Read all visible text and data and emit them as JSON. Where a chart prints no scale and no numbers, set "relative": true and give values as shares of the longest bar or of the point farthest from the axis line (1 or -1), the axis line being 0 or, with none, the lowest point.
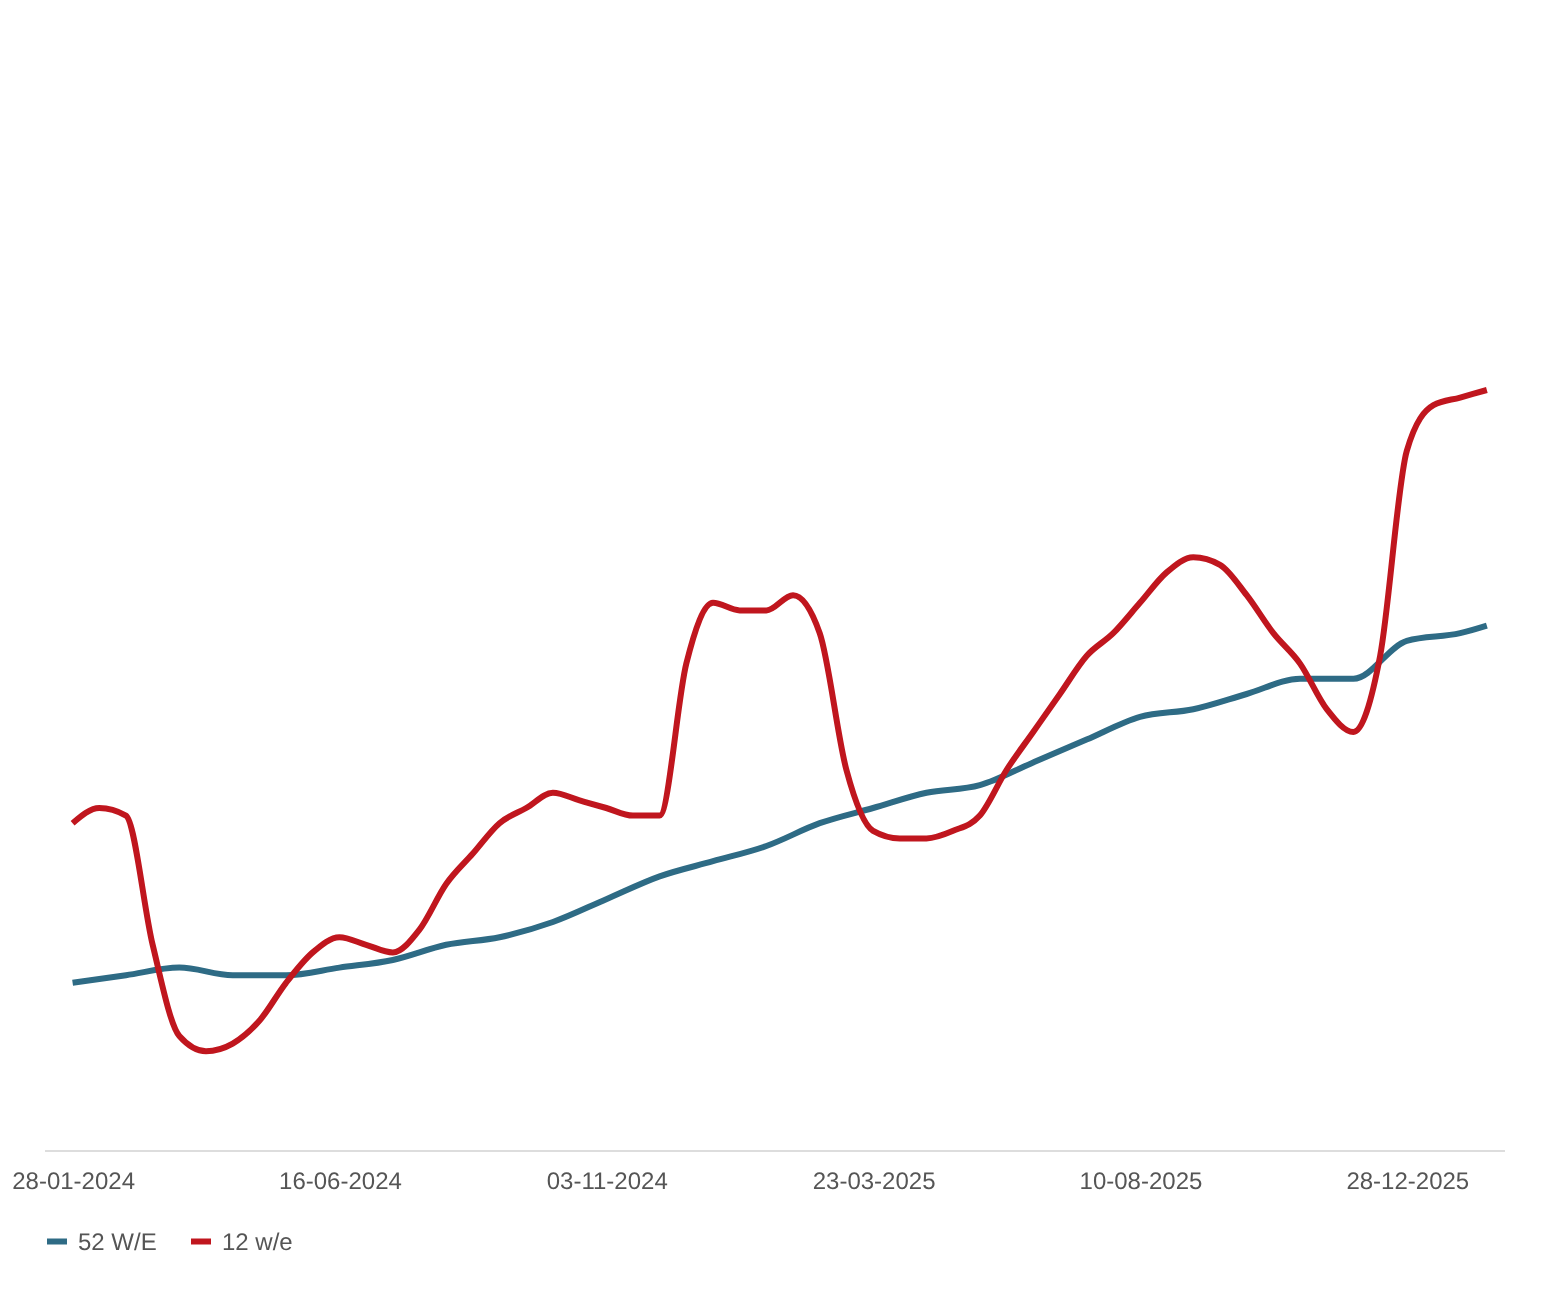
{
  "chart_data": {
    "type": "line",
    "relative": true,
    "legend": "bottom",
    "grid": false,
    "marker": "none",
    "line_style": "solid",
    "xlim": [
      "2024-01-13",
      "2026-02-17"
    ],
    "xticks": [
      {
        "value": "2024-01-28",
        "label": "28-01-2024"
      },
      {
        "value": "2024-06-16",
        "label": "16-06-2024"
      },
      {
        "value": "2024-11-03",
        "label": "03-11-2024"
      },
      {
        "value": "2025-03-23",
        "label": "23-03-2025"
      },
      {
        "value": "2025-08-10",
        "label": "10-08-2025"
      },
      {
        "value": "2025-12-28",
        "label": "28-12-2025"
      }
    ],
    "series": [
      {
        "name": "52 W/E",
        "color": "#2e6b85",
        "x": [
          "2024-01-28",
          "2024-02-25",
          "2024-03-24",
          "2024-04-21",
          "2024-05-19",
          "2024-06-16",
          "2024-07-14",
          "2024-08-11",
          "2024-09-08",
          "2024-10-06",
          "2024-11-03",
          "2024-12-01",
          "2024-12-29",
          "2025-01-26",
          "2025-02-23",
          "2025-03-23",
          "2025-04-20",
          "2025-05-18",
          "2025-06-15",
          "2025-07-13",
          "2025-08-10",
          "2025-09-07",
          "2025-10-05",
          "2025-11-02",
          "2025-11-30",
          "2025-12-28",
          "2026-01-25",
          "2026-02-08"
        ],
        "values": [
          0.22,
          0.23,
          0.24,
          0.23,
          0.23,
          0.24,
          0.25,
          0.27,
          0.28,
          0.3,
          0.33,
          0.36,
          0.38,
          0.4,
          0.43,
          0.45,
          0.47,
          0.48,
          0.51,
          0.54,
          0.57,
          0.58,
          0.6,
          0.62,
          0.62,
          0.67,
          0.68,
          0.69
        ]
      },
      {
        "name": "12 w/e",
        "color": "#c0161e",
        "x": [
          "2024-01-28",
          "2024-02-11",
          "2024-02-25",
          "2024-03-10",
          "2024-03-24",
          "2024-04-07",
          "2024-04-21",
          "2024-05-05",
          "2024-05-19",
          "2024-06-02",
          "2024-06-16",
          "2024-06-30",
          "2024-07-14",
          "2024-07-28",
          "2024-08-11",
          "2024-08-25",
          "2024-09-08",
          "2024-09-22",
          "2024-10-06",
          "2024-10-20",
          "2024-11-03",
          "2024-11-17",
          "2024-12-01",
          "2024-12-15",
          "2024-12-29",
          "2025-01-12",
          "2025-01-26",
          "2025-02-09",
          "2025-02-23",
          "2025-03-09",
          "2025-03-23",
          "2025-04-06",
          "2025-04-20",
          "2025-05-04",
          "2025-05-18",
          "2025-06-01",
          "2025-06-15",
          "2025-06-29",
          "2025-07-13",
          "2025-07-27",
          "2025-08-10",
          "2025-08-24",
          "2025-09-07",
          "2025-09-21",
          "2025-10-05",
          "2025-10-19",
          "2025-11-02",
          "2025-11-16",
          "2025-11-30",
          "2025-12-14",
          "2025-12-28",
          "2026-01-11",
          "2026-01-25",
          "2026-02-08"
        ],
        "values": [
          0.43,
          0.45,
          0.44,
          0.27,
          0.15,
          0.13,
          0.14,
          0.17,
          0.22,
          0.26,
          0.28,
          0.27,
          0.26,
          0.29,
          0.35,
          0.39,
          0.43,
          0.45,
          0.47,
          0.46,
          0.45,
          0.44,
          0.44,
          0.64,
          0.72,
          0.71,
          0.71,
          0.73,
          0.68,
          0.5,
          0.42,
          0.41,
          0.41,
          0.42,
          0.44,
          0.5,
          0.55,
          0.6,
          0.65,
          0.68,
          0.72,
          0.76,
          0.78,
          0.77,
          0.73,
          0.68,
          0.64,
          0.58,
          0.55,
          0.65,
          0.92,
          0.98,
          0.99,
          1.0
        ]
      }
    ]
  }
}
